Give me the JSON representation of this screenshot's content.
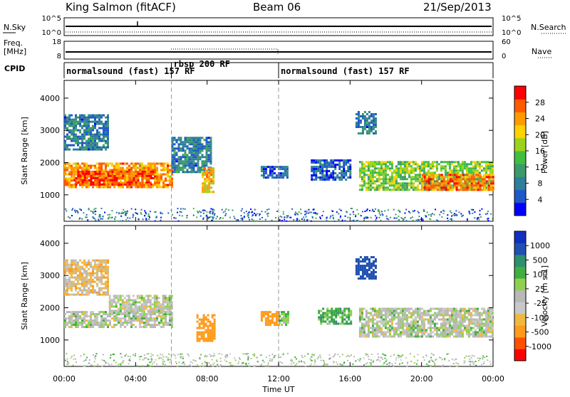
{
  "header": {
    "title": "King Salmon (fitACF)",
    "beam": "Beam 06",
    "date": "21/Sep/2013"
  },
  "top_panels": {
    "nsky_label": "N.Sky",
    "nsky_ticks": [
      "10^5",
      "10^0"
    ],
    "nsearch_label": "N.Search",
    "nsearch_ticks": [
      "10^5",
      "10^0"
    ],
    "freq_label_1": "Freq.",
    "freq_label_2": "[MHz]",
    "freq_ticks": [
      "18",
      "8"
    ],
    "nave_label": "Nave",
    "nave_ticks": [
      "60",
      "0"
    ],
    "cpid_label": "CPID"
  },
  "modes": [
    {
      "label": "normalsound (fast) 157 RF",
      "start_hour": 0,
      "end_hour": 6
    },
    {
      "label": "rbsp 200 RF",
      "start_hour": 6,
      "end_hour": 12
    },
    {
      "label": "normalsound (fast) 157 RF",
      "start_hour": 12,
      "end_hour": 24
    }
  ],
  "xaxis": {
    "label": "Time UT",
    "ticks": [
      "00:00",
      "04:00",
      "08:00",
      "12:00",
      "16:00",
      "20:00",
      "00:00"
    ],
    "range_hours": [
      0,
      24
    ]
  },
  "chart_data": [
    {
      "type": "heatmap",
      "parameter": "Power",
      "ylabel": "Slant Range [km]",
      "yticks": [
        "1000",
        "2000",
        "3000",
        "4000"
      ],
      "ylim": [
        180,
        4550
      ],
      "xlim_hours": [
        0,
        24
      ],
      "colorbar_label": "Power [dB]",
      "colorbar_ticks": [
        "28",
        "24",
        "20",
        "16",
        "12",
        "8",
        "4"
      ],
      "colorbar_range": [
        0,
        32
      ],
      "colors": [
        "#0000ff",
        "#1f58c8",
        "#2f7f9a",
        "#3a9a6a",
        "#3fbf3f",
        "#9bd21c",
        "#ffd200",
        "#ff9a00",
        "#ff5a00",
        "#ff0000"
      ],
      "echo_regions": [
        {
          "h0": 0.0,
          "h1": 6.0,
          "r0": 1250,
          "r1": 2000,
          "level": 24
        },
        {
          "h0": 0.5,
          "h1": 5.0,
          "r0": 1350,
          "r1": 1750,
          "level": 28
        },
        {
          "h0": 0.0,
          "h1": 2.5,
          "r0": 2400,
          "r1": 3500,
          "level": 8
        },
        {
          "h0": 6.0,
          "h1": 8.2,
          "r0": 1700,
          "r1": 2800,
          "level": 8
        },
        {
          "h0": 7.7,
          "h1": 8.4,
          "r0": 1100,
          "r1": 1850,
          "level": 22
        },
        {
          "h0": 11.0,
          "h1": 12.5,
          "r0": 1550,
          "r1": 1900,
          "level": 6
        },
        {
          "h0": 13.8,
          "h1": 16.0,
          "r0": 1500,
          "r1": 2100,
          "level": 6
        },
        {
          "h0": 16.3,
          "h1": 17.4,
          "r0": 2900,
          "r1": 3600,
          "level": 8
        },
        {
          "h0": 16.5,
          "h1": 24.0,
          "r0": 1150,
          "r1": 2050,
          "level": 16
        },
        {
          "h0": 20.0,
          "h1": 24.0,
          "r0": 1150,
          "r1": 1650,
          "level": 26
        }
      ]
    },
    {
      "type": "heatmap",
      "parameter": "Velocity",
      "ylabel": "Slant Range [km]",
      "yticks": [
        "1000",
        "2000",
        "3000",
        "4000"
      ],
      "ylim": [
        180,
        4550
      ],
      "xlim_hours": [
        0,
        24
      ],
      "colorbar_label": "Velocity [m s-1]",
      "colorbar_ticks": [
        "1000",
        "500",
        "100",
        "25",
        "-25",
        "-100",
        "-500",
        "-1000"
      ],
      "colorbar_range": [
        -1200,
        1200
      ],
      "colors": [
        "#ff0000",
        "#ff5000",
        "#ff9a1a",
        "#f0b840",
        "#c8c8c8",
        "#b8b8b8",
        "#90d050",
        "#3faf3f",
        "#2f8f6f",
        "#2050b0",
        "#1030c0"
      ],
      "echo_regions": [
        {
          "h0": 0.0,
          "h1": 6.0,
          "r0": 1400,
          "r1": 1900,
          "level": 0
        },
        {
          "h0": 2.5,
          "h1": 6.0,
          "r0": 1850,
          "r1": 2400,
          "level": 0
        },
        {
          "h0": 0.0,
          "h1": 2.5,
          "r0": 2400,
          "r1": 3500,
          "level": -60
        },
        {
          "h0": 7.4,
          "h1": 8.4,
          "r0": 1000,
          "r1": 1800,
          "level": -300
        },
        {
          "h0": 11.0,
          "h1": 12.0,
          "r0": 1500,
          "r1": 1900,
          "level": -200
        },
        {
          "h0": 12.0,
          "h1": 12.5,
          "r0": 1500,
          "r1": 1900,
          "level": 60
        },
        {
          "h0": 14.2,
          "h1": 16.0,
          "r0": 1500,
          "r1": 2000,
          "level": 80
        },
        {
          "h0": 16.3,
          "h1": 17.4,
          "r0": 2900,
          "r1": 3600,
          "level": 600
        },
        {
          "h0": 16.5,
          "h1": 24.0,
          "r0": 1100,
          "r1": 2000,
          "level": 0
        }
      ]
    }
  ]
}
